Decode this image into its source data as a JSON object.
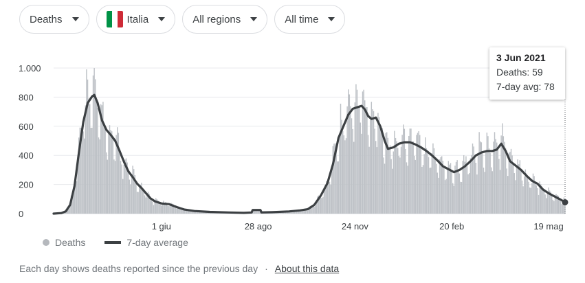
{
  "filters": {
    "metric": {
      "label": "Deaths"
    },
    "country": {
      "label": "Italia",
      "flag_colors": [
        "#009246",
        "#ffffff",
        "#ce2b37"
      ]
    },
    "region": {
      "label": "All regions"
    },
    "period": {
      "label": "All time"
    }
  },
  "tooltip": {
    "date": "3 Jun 2021",
    "deaths_label": "Deaths: 59",
    "avg_label": "7-day avg: 78"
  },
  "legend": {
    "deaths": "Deaths",
    "average": "7-day average"
  },
  "footer": {
    "note": "Each day shows deaths reported since the previous day",
    "separator": "·",
    "link": "About this data"
  },
  "colors": {
    "bars": "#bdc1c6",
    "line": "#3c4043",
    "grid": "#e8eaed",
    "axis_text": "#3c4043"
  },
  "chart_data": {
    "type": "bar",
    "x_range": [
      "2020-02-24",
      "2021-06-03"
    ],
    "ylim": [
      0,
      1000
    ],
    "y_ticks": [
      {
        "value": 0,
        "label": "0"
      },
      {
        "value": 200,
        "label": "200"
      },
      {
        "value": 400,
        "label": "400"
      },
      {
        "value": 600,
        "label": "600"
      },
      {
        "value": 800,
        "label": "800"
      },
      {
        "value": 1000,
        "label": "1.000"
      }
    ],
    "x_ticks": [
      {
        "date": "2020-06-01",
        "label": "1 giu"
      },
      {
        "date": "2020-08-28",
        "label": "28 ago"
      },
      {
        "date": "2020-11-24",
        "label": "24 nov"
      },
      {
        "date": "2021-02-20",
        "label": "20 feb"
      },
      {
        "date": "2021-05-19",
        "label": "19 mag"
      }
    ],
    "series": [
      {
        "name": "Deaths",
        "kind": "bars"
      },
      {
        "name": "7-day average",
        "kind": "line",
        "points": [
          [
            "2020-02-24",
            0
          ],
          [
            "2020-03-02",
            4
          ],
          [
            "2020-03-06",
            15
          ],
          [
            "2020-03-10",
            60
          ],
          [
            "2020-03-14",
            190
          ],
          [
            "2020-03-18",
            420
          ],
          [
            "2020-03-22",
            630
          ],
          [
            "2020-03-26",
            760
          ],
          [
            "2020-03-30",
            805
          ],
          [
            "2020-04-01",
            815
          ],
          [
            "2020-04-04",
            760
          ],
          [
            "2020-04-08",
            640
          ],
          [
            "2020-04-12",
            575
          ],
          [
            "2020-04-16",
            540
          ],
          [
            "2020-04-20",
            500
          ],
          [
            "2020-04-24",
            430
          ],
          [
            "2020-04-28",
            355
          ],
          [
            "2020-05-02",
            290
          ],
          [
            "2020-05-06",
            250
          ],
          [
            "2020-05-10",
            205
          ],
          [
            "2020-05-14",
            175
          ],
          [
            "2020-05-18",
            140
          ],
          [
            "2020-05-22",
            105
          ],
          [
            "2020-05-26",
            85
          ],
          [
            "2020-06-01",
            70
          ],
          [
            "2020-06-08",
            65
          ],
          [
            "2020-06-15",
            45
          ],
          [
            "2020-06-22",
            28
          ],
          [
            "2020-07-01",
            18
          ],
          [
            "2020-07-15",
            12
          ],
          [
            "2020-08-01",
            8
          ],
          [
            "2020-08-15",
            5
          ],
          [
            "2020-08-22",
            8
          ],
          [
            "2020-08-23",
            25
          ],
          [
            "2020-08-30",
            25
          ],
          [
            "2020-08-31",
            8
          ],
          [
            "2020-09-10",
            10
          ],
          [
            "2020-09-25",
            15
          ],
          [
            "2020-10-05",
            22
          ],
          [
            "2020-10-12",
            30
          ],
          [
            "2020-10-18",
            60
          ],
          [
            "2020-10-24",
            125
          ],
          [
            "2020-10-30",
            210
          ],
          [
            "2020-11-04",
            340
          ],
          [
            "2020-11-09",
            520
          ],
          [
            "2020-11-14",
            610
          ],
          [
            "2020-11-18",
            680
          ],
          [
            "2020-11-22",
            720
          ],
          [
            "2020-11-26",
            730
          ],
          [
            "2020-11-30",
            740
          ],
          [
            "2020-12-03",
            715
          ],
          [
            "2020-12-06",
            670
          ],
          [
            "2020-12-09",
            650
          ],
          [
            "2020-12-13",
            660
          ],
          [
            "2020-12-17",
            600
          ],
          [
            "2020-12-21",
            500
          ],
          [
            "2020-12-24",
            445
          ],
          [
            "2020-12-29",
            455
          ],
          [
            "2021-01-03",
            480
          ],
          [
            "2021-01-08",
            490
          ],
          [
            "2021-01-13",
            490
          ],
          [
            "2021-01-18",
            475
          ],
          [
            "2021-01-23",
            455
          ],
          [
            "2021-01-28",
            430
          ],
          [
            "2021-02-02",
            400
          ],
          [
            "2021-02-07",
            365
          ],
          [
            "2021-02-12",
            325
          ],
          [
            "2021-02-17",
            305
          ],
          [
            "2021-02-22",
            285
          ],
          [
            "2021-02-27",
            300
          ],
          [
            "2021-03-04",
            325
          ],
          [
            "2021-03-09",
            360
          ],
          [
            "2021-03-14",
            400
          ],
          [
            "2021-03-19",
            420
          ],
          [
            "2021-03-24",
            430
          ],
          [
            "2021-03-29",
            430
          ],
          [
            "2021-04-02",
            440
          ],
          [
            "2021-04-06",
            480
          ],
          [
            "2021-04-10",
            430
          ],
          [
            "2021-04-14",
            360
          ],
          [
            "2021-04-19",
            330
          ],
          [
            "2021-04-24",
            300
          ],
          [
            "2021-04-29",
            260
          ],
          [
            "2021-05-04",
            225
          ],
          [
            "2021-05-09",
            205
          ],
          [
            "2021-05-14",
            165
          ],
          [
            "2021-05-19",
            140
          ],
          [
            "2021-05-24",
            120
          ],
          [
            "2021-05-29",
            100
          ],
          [
            "2021-06-03",
            78
          ]
        ]
      }
    ],
    "highlight": {
      "date": "2021-06-03",
      "value": 78
    },
    "grid": true,
    "legend_position": "bottom-left"
  }
}
